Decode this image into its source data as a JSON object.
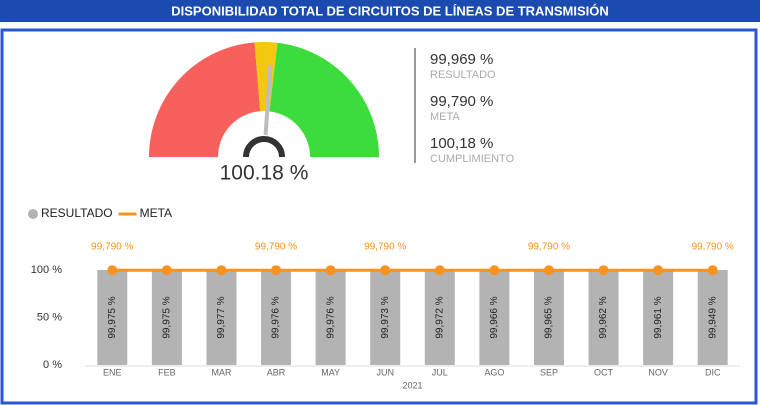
{
  "header": {
    "title": "DISPONIBILIDAD TOTAL DE CIRCUITOS DE LÍNEAS DE TRANSMISIÓN"
  },
  "kpis": [
    {
      "value": "99,969 %",
      "label": "RESULTADO"
    },
    {
      "value": "99,790 %",
      "label": "META"
    },
    {
      "value": "100,18 %",
      "label": "CUMPLIMIENTO"
    }
  ],
  "chart_data": [
    {
      "type": "gauge",
      "value": 100.18,
      "value_label": "100.18 %",
      "lim": [
        96,
        104
      ],
      "ranges": [
        {
          "from": 96,
          "to": 99.79,
          "color": "#f8605b"
        },
        {
          "from": 99.79,
          "to": 100.3,
          "color": "#f2c811"
        },
        {
          "from": 100.3,
          "to": 104,
          "color": "#3ddc3d"
        }
      ],
      "needle_color": "#bdbdbd"
    },
    {
      "type": "bar_line",
      "x_label": "2021",
      "categories": [
        "ENE",
        "FEB",
        "MAR",
        "ABR",
        "MAY",
        "JUN",
        "JUL",
        "AGO",
        "SEP",
        "OCT",
        "NOV",
        "DIC"
      ],
      "series": [
        {
          "name": "RESULTADO",
          "kind": "bar",
          "color": "#b3b3b3",
          "values": [
            99.975,
            99.975,
            99.977,
            99.976,
            99.976,
            99.973,
            99.972,
            99.966,
            99.965,
            99.962,
            99.961,
            99.949
          ],
          "value_labels": [
            "99,975 %",
            "99,975 %",
            "99,977 %",
            "99,976 %",
            "99,976 %",
            "99,973 %",
            "99,972 %",
            "99,966 %",
            "99,965 %",
            "99,962 %",
            "99,961 %",
            "99,949 %"
          ]
        },
        {
          "name": "META",
          "kind": "line",
          "color": "#f7931e",
          "values": [
            99.79,
            99.79,
            99.79,
            99.79,
            99.79,
            99.79,
            99.79,
            99.79,
            99.79,
            99.79,
            99.79,
            99.79
          ],
          "value_labels": [
            "99,790 %",
            null,
            null,
            "99,790 %",
            null,
            "99,790 %",
            null,
            null,
            "99,790 %",
            null,
            null,
            "99,790 %"
          ]
        }
      ],
      "ylim": [
        0,
        100
      ],
      "yticks": [
        {
          "value": 0,
          "label": "0 %"
        },
        {
          "value": 50,
          "label": "50 %"
        },
        {
          "value": 100,
          "label": "100 %"
        }
      ],
      "legend": "top-left"
    }
  ]
}
